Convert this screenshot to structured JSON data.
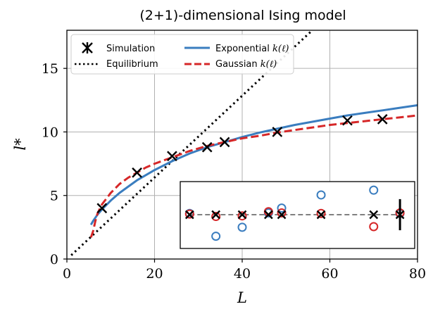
{
  "chart_data": {
    "type": "line",
    "title": "(2+1)-dimensional Ising model",
    "xlabel": "L",
    "ylabel": "l*",
    "xlim": [
      0,
      80
    ],
    "ylim": [
      0,
      18
    ],
    "xticks": [
      0,
      20,
      40,
      60,
      80
    ],
    "yticks": [
      0,
      5,
      10,
      15
    ],
    "xtick_labels": [
      "0",
      "20",
      "40",
      "60",
      "80"
    ],
    "ytick_labels": [
      "0",
      "5",
      "10",
      "15"
    ],
    "grid": true,
    "legend": {
      "placement": "top-left",
      "entries": [
        {
          "label": "Simulation",
          "math": ""
        },
        {
          "label": "Equilibrium",
          "math": ""
        },
        {
          "label": "Exponential ",
          "math": "k(ℓ)"
        },
        {
          "label": "Gaussian ",
          "math": "k(ℓ)"
        }
      ]
    },
    "colors": {
      "simulation": "#000000",
      "equilibrium": "#000000",
      "exponential": "#3a7dbf",
      "gaussian": "#d62728",
      "grid": "#b0b0b0"
    },
    "series": [
      {
        "name": "Simulation",
        "style": "markers",
        "marker": "x",
        "x": [
          8,
          16,
          24,
          32,
          36,
          48,
          64,
          72
        ],
        "y": [
          4.0,
          6.8,
          8.1,
          8.8,
          9.2,
          10.0,
          10.9,
          11.0
        ]
      },
      {
        "name": "Equilibrium",
        "style": "dotted",
        "x": [
          1,
          56
        ],
        "y": [
          0.3,
          18.0
        ]
      },
      {
        "name": "Exponential k(ℓ)",
        "style": "solid",
        "x": [
          5.5,
          6,
          7,
          8,
          10,
          12,
          14,
          16,
          18,
          20,
          24,
          28,
          32,
          36,
          40,
          44,
          48,
          52,
          56,
          60,
          64,
          68,
          72,
          76,
          80
        ],
        "y": [
          2.7,
          3.0,
          3.5,
          3.9,
          4.6,
          5.2,
          5.7,
          6.2,
          6.6,
          7.0,
          7.7,
          8.3,
          8.8,
          9.2,
          9.6,
          9.95,
          10.25,
          10.55,
          10.8,
          11.05,
          11.3,
          11.5,
          11.7,
          11.9,
          12.1
        ]
      },
      {
        "name": "Gaussian k(ℓ)",
        "style": "dashed",
        "x": [
          5.5,
          6,
          6.5,
          7,
          8,
          10,
          12,
          14,
          16,
          18,
          20,
          24,
          28,
          32,
          36,
          40,
          44,
          48,
          52,
          56,
          60,
          64,
          68,
          72,
          76,
          80
        ],
        "y": [
          1.7,
          2.2,
          3.0,
          3.6,
          4.3,
          5.2,
          5.9,
          6.4,
          6.8,
          7.2,
          7.5,
          8.0,
          8.5,
          8.9,
          9.2,
          9.5,
          9.7,
          9.95,
          10.15,
          10.35,
          10.55,
          10.7,
          10.85,
          11.0,
          11.15,
          11.3
        ]
      }
    ],
    "inset": {
      "reference_line_x": [
        28,
        76
      ],
      "cross_x": [
        28,
        34,
        40,
        46,
        49,
        58,
        70
      ],
      "exponential_x": [
        28,
        34,
        40,
        46,
        49,
        58,
        70,
        76
      ],
      "exponential_dev": [
        0.1,
        -1.8,
        -1.05,
        0.15,
        0.55,
        1.65,
        2.05,
        0.1
      ],
      "gaussian_x": [
        28,
        34,
        40,
        46,
        49,
        58,
        70,
        76
      ],
      "gaussian_dev": [
        0.05,
        -0.15,
        -0.1,
        0.25,
        0.15,
        0.1,
        -1.0,
        0.15
      ],
      "errorbar_x": 76,
      "errorbar_half": 1.3
    }
  }
}
